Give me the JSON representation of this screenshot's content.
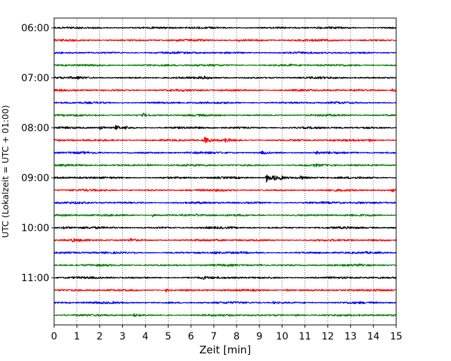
{
  "chart_data": {
    "type": "line",
    "xlabel": "Zeit  [min]",
    "ylabel": "UTC (Lokalzeit = UTC + 01:00)",
    "xlim": [
      0,
      15
    ],
    "x_ticks": [
      "0",
      "1",
      "2",
      "3",
      "4",
      "5",
      "6",
      "7",
      "8",
      "9",
      "10",
      "11",
      "12",
      "13",
      "14",
      "15"
    ],
    "y_ticks": [
      "06:00",
      "07:00",
      "08:00",
      "09:00",
      "10:00",
      "11:00"
    ],
    "grid": "vertical-dotted",
    "trace_interval_minutes": 15,
    "trace_colors": [
      "#000000",
      "#ff0000",
      "#0000ff",
      "#008000"
    ],
    "traces": [
      {
        "start": "06:00",
        "events": []
      },
      {
        "start": "06:15",
        "events": [
          [
            8.1,
            1.5
          ]
        ]
      },
      {
        "start": "06:30",
        "events": []
      },
      {
        "start": "06:45",
        "events": [
          [
            10.3,
            1.2
          ]
        ]
      },
      {
        "start": "07:00",
        "events": [
          [
            1.0,
            1.5
          ],
          [
            6.5,
            1.6
          ]
        ]
      },
      {
        "start": "07:15",
        "events": [
          [
            14.8,
            3.5
          ]
        ]
      },
      {
        "start": "07:30",
        "events": []
      },
      {
        "start": "07:45",
        "events": [
          [
            3.9,
            2.2
          ]
        ]
      },
      {
        "start": "08:00",
        "events": [
          [
            2.0,
            2.3
          ],
          [
            2.7,
            2.8
          ],
          [
            3.1,
            2.0
          ]
        ]
      },
      {
        "start": "08:15",
        "events": [
          [
            6.6,
            4.0
          ],
          [
            7.5,
            2.2
          ],
          [
            13.8,
            1.6
          ]
        ]
      },
      {
        "start": "08:30",
        "events": [
          [
            9.1,
            2.2
          ],
          [
            11.5,
            1.5
          ]
        ]
      },
      {
        "start": "08:45",
        "events": [
          [
            4.1,
            2.2
          ],
          [
            11.4,
            1.5
          ]
        ]
      },
      {
        "start": "09:00",
        "events": [
          [
            9.3,
            7.0
          ],
          [
            9.6,
            4.0
          ],
          [
            9.9,
            2.5
          ],
          [
            10.8,
            1.8
          ]
        ]
      },
      {
        "start": "09:15",
        "events": [
          [
            14.8,
            2.0
          ]
        ]
      },
      {
        "start": "09:30",
        "events": [
          [
            13.3,
            1.2
          ]
        ]
      },
      {
        "start": "09:45",
        "events": [
          [
            4.3,
            2.0
          ],
          [
            6.2,
            1.3
          ]
        ]
      },
      {
        "start": "10:00",
        "events": [
          [
            0.4,
            1.6
          ]
        ]
      },
      {
        "start": "10:15",
        "events": [
          [
            3.3,
            2.8
          ],
          [
            0.8,
            1.6
          ]
        ]
      },
      {
        "start": "10:30",
        "events": [
          [
            7.0,
            1.4
          ]
        ]
      },
      {
        "start": "10:45",
        "events": [
          [
            9.0,
            1.3
          ],
          [
            13.2,
            1.3
          ]
        ]
      },
      {
        "start": "11:00",
        "events": [
          [
            6.5,
            1.4
          ]
        ]
      },
      {
        "start": "11:15",
        "events": [
          [
            4.9,
            2.2
          ],
          [
            10.2,
            1.5
          ]
        ]
      },
      {
        "start": "11:30",
        "events": [
          [
            9.6,
            1.4
          ]
        ]
      },
      {
        "start": "11:45",
        "events": [
          [
            3.5,
            2.0
          ],
          [
            10.6,
            1.4
          ]
        ]
      }
    ]
  }
}
